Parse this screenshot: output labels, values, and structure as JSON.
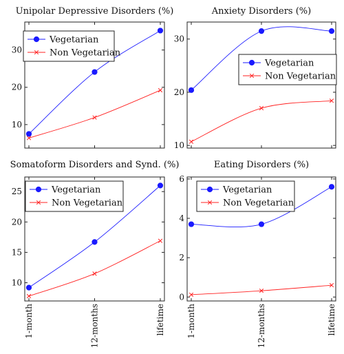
{
  "colors": {
    "vegetarian": "#1a1aff",
    "non_vegetarian": "#ff2020"
  },
  "chart_data": [
    {
      "type": "line",
      "title": "Unipolar Depressive Disorders (%)",
      "categories": [
        "1-month",
        "12-months",
        "lifetime"
      ],
      "show_x_tick_labels": false,
      "ylim": [
        3.7,
        37.5
      ],
      "yticks": [
        10,
        20,
        30
      ],
      "legend": "top-left",
      "series": [
        {
          "name": "Vegetarian",
          "marker": "circle",
          "values": [
            7.5,
            24.1,
            35.2
          ]
        },
        {
          "name": "Non Vegetarian",
          "marker": "x",
          "values": [
            6.4,
            11.9,
            19.2
          ]
        }
      ]
    },
    {
      "type": "line",
      "title": "Anxiety Disorders (%)",
      "categories": [
        "1-month",
        "12-months",
        "lifetime"
      ],
      "show_x_tick_labels": false,
      "ylim": [
        9.5,
        33.2
      ],
      "yticks": [
        10,
        20,
        30
      ],
      "legend": "middle-right",
      "series": [
        {
          "name": "Vegetarian",
          "marker": "circle",
          "values": [
            20.4,
            31.5,
            31.5
          ]
        },
        {
          "name": "Non Vegetarian",
          "marker": "x",
          "values": [
            10.7,
            17.0,
            18.4
          ]
        }
      ]
    },
    {
      "type": "line",
      "title": "Somatoform Disorders and Synd. (%)",
      "categories": [
        "1-month",
        "12-months",
        "lifetime"
      ],
      "show_x_tick_labels": true,
      "ylim": [
        7.0,
        27.4
      ],
      "yticks": [
        10,
        15,
        20,
        25
      ],
      "legend": "top-left",
      "series": [
        {
          "name": "Vegetarian",
          "marker": "circle",
          "values": [
            9.2,
            16.7,
            26.0
          ]
        },
        {
          "name": "Non Vegetarian",
          "marker": "x",
          "values": [
            7.8,
            11.5,
            16.9
          ]
        }
      ]
    },
    {
      "type": "line",
      "title": "Eating Disorders (%)",
      "categories": [
        "1-month",
        "12-months",
        "lifetime"
      ],
      "show_x_tick_labels": true,
      "ylim": [
        -0.2,
        6.1
      ],
      "yticks": [
        0,
        2,
        4,
        6
      ],
      "legend": "top-left",
      "series": [
        {
          "name": "Vegetarian",
          "marker": "circle",
          "values": [
            3.7,
            3.7,
            5.6
          ]
        },
        {
          "name": "Non Vegetarian",
          "marker": "x",
          "values": [
            0.12,
            0.32,
            0.6
          ]
        }
      ]
    }
  ]
}
